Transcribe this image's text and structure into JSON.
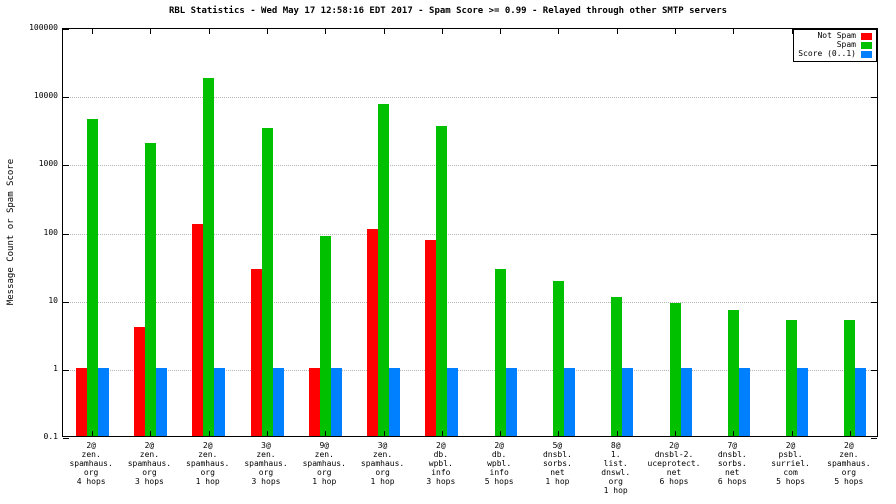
{
  "title": "RBL Statistics - Wed May 17 12:58:16 EDT 2017 - Spam Score >= 0.99 - Relayed through other SMTP servers",
  "ylabel": "Message Count or Spam Score",
  "legend": {
    "position": "top-right",
    "items": [
      {
        "label": "Not Spam",
        "color": "#ff0000"
      },
      {
        "label": "Spam",
        "color": "#00c000"
      },
      {
        "label": "Score (0..1)",
        "color": "#0080ff"
      }
    ]
  },
  "chart_data": {
    "type": "bar",
    "y_scale": "log",
    "ylim": [
      0.1,
      100000
    ],
    "yticks": [
      0.1,
      1,
      10,
      100,
      1000,
      10000,
      100000
    ],
    "grid": true,
    "title": "RBL Statistics - Wed May 17 12:58:16 EDT 2017 - Spam Score >= 0.99 - Relayed through other SMTP servers",
    "ylabel": "Message Count or Spam Score",
    "xlabel": "",
    "categories": [
      [
        "2@",
        "zen.",
        "spamhaus.",
        "org",
        "4 hops"
      ],
      [
        "2@",
        "zen.",
        "spamhaus.",
        "org",
        "3 hops"
      ],
      [
        "2@",
        "zen.",
        "spamhaus.",
        "org",
        "1 hop"
      ],
      [
        "3@",
        "zen.",
        "spamhaus.",
        "org",
        "3 hops"
      ],
      [
        "9@",
        "zen.",
        "spamhaus.",
        "org",
        "1 hop"
      ],
      [
        "3@",
        "zen.",
        "spamhaus.",
        "org",
        "1 hop"
      ],
      [
        "2@",
        "db.",
        "wpbl.",
        "info",
        "3 hops"
      ],
      [
        "2@",
        "db.",
        "wpbl.",
        "info",
        "5 hops"
      ],
      [
        "5@",
        "dnsbl.",
        "sorbs.",
        "net",
        "1 hop"
      ],
      [
        "8@",
        "1.",
        "list.",
        "dnswl.",
        "org",
        "1 hop"
      ],
      [
        "2@",
        "dnsbl-2.",
        "uceprotect.",
        "net",
        "6 hops"
      ],
      [
        "7@",
        "dnsbl.",
        "sorbs.",
        "net",
        "6 hops"
      ],
      [
        "2@",
        "psbl.",
        "surriel.",
        "com",
        "5 hops"
      ],
      [
        "2@",
        "zen.",
        "spamhaus.",
        "org",
        "5 hops"
      ]
    ],
    "series": [
      {
        "name": "Not Spam",
        "color": "#ff0000",
        "values": [
          1,
          4,
          130,
          28,
          1,
          110,
          75,
          null,
          null,
          null,
          null,
          null,
          null,
          null
        ]
      },
      {
        "name": "Spam",
        "color": "#00c000",
        "values": [
          4500,
          2000,
          18000,
          3300,
          85,
          7500,
          3500,
          28,
          19,
          11,
          9,
          7,
          5,
          5
        ]
      },
      {
        "name": "Score (0..1)",
        "color": "#0080ff",
        "values": [
          1,
          1,
          1,
          1,
          1,
          1,
          1,
          1,
          1,
          1,
          1,
          1,
          1,
          1
        ]
      }
    ]
  }
}
